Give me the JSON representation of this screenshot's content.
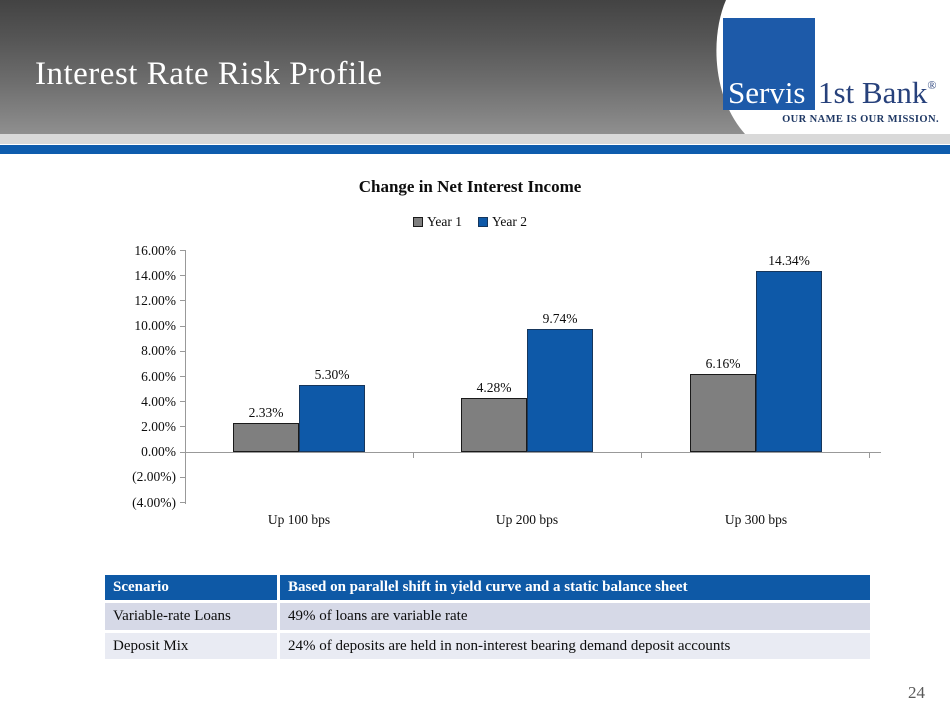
{
  "slide": {
    "title": "Interest Rate Risk Profile",
    "page_number": "24"
  },
  "logo": {
    "square_text": "Servis",
    "rest_text": "1st Bank",
    "registered_mark": "®",
    "tagline": "OUR NAME IS OUR MISSION.",
    "colors": {
      "square_blue": "#1d5aa9",
      "wordmark_blue": "#27417b",
      "tagline_navy": "#1f3864"
    }
  },
  "theme": {
    "accent_stripe_blue": "#0e5cad",
    "header_gray_top": "#434343",
    "header_gray_bottom": "#8f8f8f"
  },
  "chart_data": {
    "type": "bar",
    "title": "Change in Net Interest Income",
    "categories": [
      "Up 100 bps",
      "Up 200 bps",
      "Up 300 bps"
    ],
    "series": [
      {
        "name": "Year 1",
        "color": "#7f7f7f",
        "border": "#1a1a1a",
        "values": [
          2.33,
          4.28,
          6.16
        ],
        "labels": [
          "2.33%",
          "4.28%",
          "6.16%"
        ]
      },
      {
        "name": "Year 2",
        "color": "#0e59a8",
        "border": "#16365c",
        "values": [
          5.3,
          9.74,
          14.34
        ],
        "labels": [
          "5.30%",
          "9.74%",
          "14.34%"
        ]
      }
    ],
    "y_ticks": [
      "16.00%",
      "14.00%",
      "12.00%",
      "10.00%",
      "8.00%",
      "6.00%",
      "4.00%",
      "2.00%",
      "0.00%",
      "(2.00%)",
      "(4.00%)"
    ],
    "ylim": [
      -4,
      16
    ],
    "y_step": 2,
    "grid": false,
    "legend_position": "top-center",
    "xlabel": "",
    "ylabel": ""
  },
  "table": {
    "header": [
      "Scenario",
      "Based on parallel shift in yield curve and a static balance sheet"
    ],
    "rows": [
      [
        "Variable-rate Loans",
        "49% of loans are variable rate"
      ],
      [
        "Deposit Mix",
        "24% of deposits are held in non-interest bearing demand deposit accounts"
      ]
    ],
    "colors": {
      "header_bg": "#0e59a6",
      "row1_bg": "#d6d9e7",
      "row2_bg": "#e9ebf3"
    }
  }
}
